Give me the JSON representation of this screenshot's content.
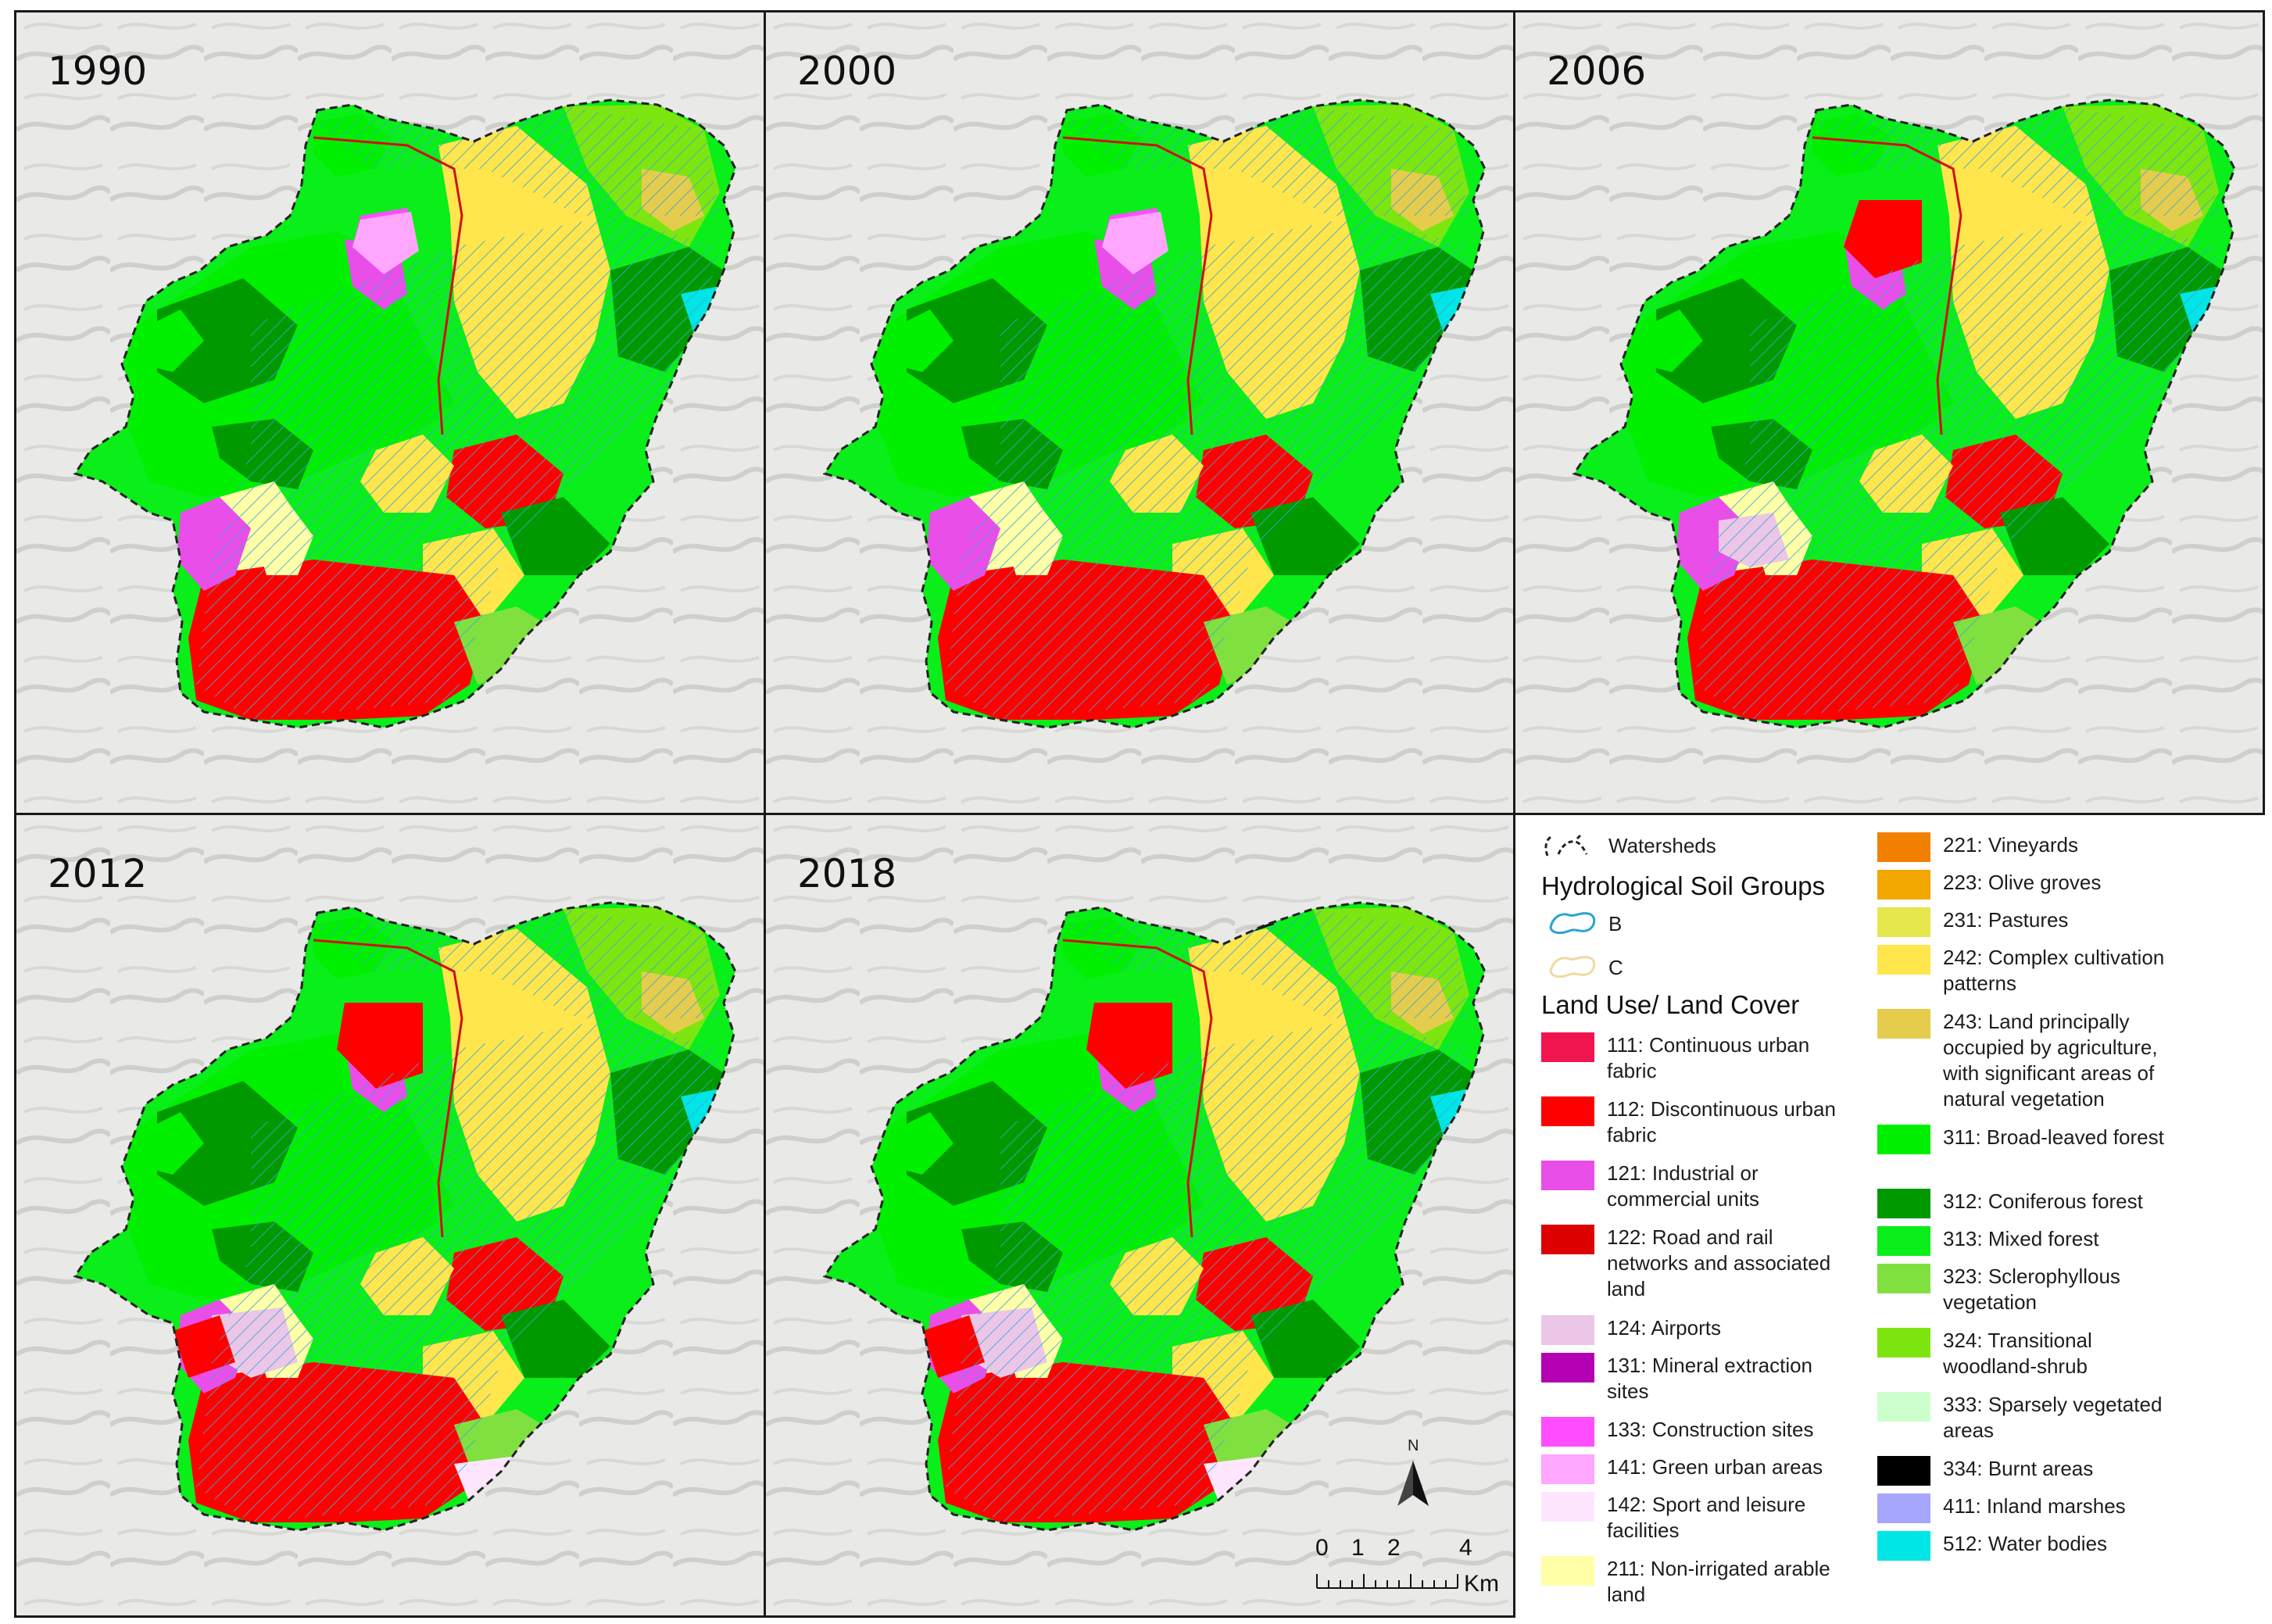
{
  "panels": [
    {
      "year": "1990"
    },
    {
      "year": "2000"
    },
    {
      "year": "2006"
    },
    {
      "year": "2012"
    },
    {
      "year": "2018"
    }
  ],
  "legend": {
    "watersheds_label": "Watersheds",
    "hsg_title": "Hydrological Soil Groups",
    "hsg_b": "B",
    "hsg_c": "C",
    "lulc_title": "Land Use/ Land Cover",
    "col1": [
      {
        "code": "111",
        "label": "111: Continuous urban fabric",
        "color": "#f0154f"
      },
      {
        "code": "112",
        "label": "112: Discontinuous urban fabric",
        "color": "#ff0000"
      },
      {
        "code": "121",
        "label": "121: Industrial or commercial units",
        "color": "#e94ee9"
      },
      {
        "code": "122",
        "label": "122: Road and rail networks and associated land",
        "color": "#dd0000"
      },
      {
        "code": "124",
        "label": "124: Airports",
        "color": "#ecc6e6"
      },
      {
        "code": "131",
        "label": "131: Mineral extraction sites",
        "color": "#b300b3"
      },
      {
        "code": "133",
        "label": "133: Construction sites",
        "color": "#ff4dff"
      },
      {
        "code": "141",
        "label": "141: Green urban areas",
        "color": "#ffa6ff"
      },
      {
        "code": "142",
        "label": "142: Sport and leisure facilities",
        "color": "#ffe6ff"
      },
      {
        "code": "211",
        "label": "211: Non-irrigated arable land",
        "color": "#ffffa8"
      }
    ],
    "col2": [
      {
        "code": "221",
        "label": "221: Vineyards",
        "color": "#f28000"
      },
      {
        "code": "223",
        "label": "223: Olive groves",
        "color": "#f2a600"
      },
      {
        "code": "231",
        "label": "231: Pastures",
        "color": "#e6e64d"
      },
      {
        "code": "242",
        "label": "242: Complex cultivation patterns",
        "color": "#ffe64d"
      },
      {
        "code": "243",
        "label": "243: Land principally occupied by agriculture, with significant areas of natural vegetation",
        "color": "#e6cc4d"
      },
      {
        "code": "311",
        "label": "311: Broad-leaved forest",
        "color": "#00f000"
      },
      {
        "code": "312",
        "label": "312: Coniferous forest",
        "color": "#009900"
      },
      {
        "code": "313",
        "label": "313: Mixed forest",
        "color": "#0aee1a"
      },
      {
        "code": "323",
        "label": "323: Sclerophyllous vegetation",
        "color": "#80e040"
      },
      {
        "code": "324",
        "label": "324: Transitional woodland-shrub",
        "color": "#7de611"
      },
      {
        "code": "333",
        "label": "333: Sparsely vegetated areas",
        "color": "#ccffcc"
      },
      {
        "code": "334",
        "label": "334: Burnt areas",
        "color": "#000000"
      },
      {
        "code": "411",
        "label": "411: Inland marshes",
        "color": "#a6a6ff"
      },
      {
        "code": "512",
        "label": "512: Water bodies",
        "color": "#00e6e6"
      }
    ]
  },
  "scale": {
    "ticks": [
      "0",
      "1",
      "2",
      "4"
    ],
    "unit": "Km"
  },
  "north": "N"
}
